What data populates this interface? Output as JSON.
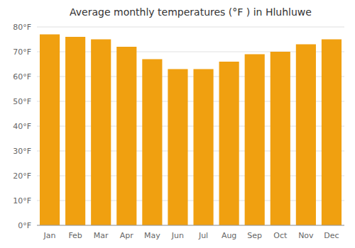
{
  "chart_data": {
    "type": "bar",
    "title": "Average monthly temperatures (°F ) in Hluhluwe",
    "categories": [
      "Jan",
      "Feb",
      "Mar",
      "Apr",
      "May",
      "Jun",
      "Jul",
      "Aug",
      "Sep",
      "Oct",
      "Nov",
      "Dec"
    ],
    "values": [
      77,
      76,
      75,
      72,
      67,
      63,
      63,
      66,
      69,
      70,
      73,
      75
    ],
    "color": "#F0A010",
    "ylim": [
      0,
      80
    ],
    "yticks": [
      {
        "value": 0,
        "label": "0°F"
      },
      {
        "value": 10,
        "label": "10°F"
      },
      {
        "value": 20,
        "label": "20°F"
      },
      {
        "value": 30,
        "label": "30°F"
      },
      {
        "value": 40,
        "label": "40°F"
      },
      {
        "value": 50,
        "label": "50°F"
      },
      {
        "value": 60,
        "label": "60°F"
      },
      {
        "value": 70,
        "label": "70°F"
      },
      {
        "value": 80,
        "label": "80°F"
      }
    ],
    "grid": true
  }
}
